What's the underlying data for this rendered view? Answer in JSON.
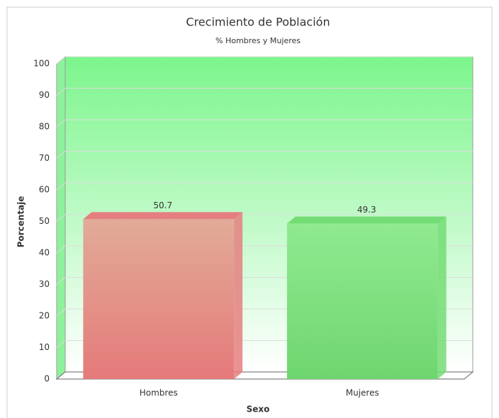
{
  "chart_data": {
    "type": "bar3d",
    "title": "Crecimiento de Población",
    "subtitle": "% Hombres y Mujeres",
    "x_label": "Sexo",
    "y_label": "Porcentaje",
    "categories": [
      "Hombres",
      "Mujeres"
    ],
    "values": [
      50.7,
      49.3
    ],
    "colors": [
      "#e57f7f",
      "#74dc74"
    ],
    "ylim": [
      0,
      100
    ],
    "yticks": [
      0,
      10,
      20,
      30,
      40,
      50,
      60,
      70,
      80,
      90,
      100
    ],
    "grid": true
  }
}
